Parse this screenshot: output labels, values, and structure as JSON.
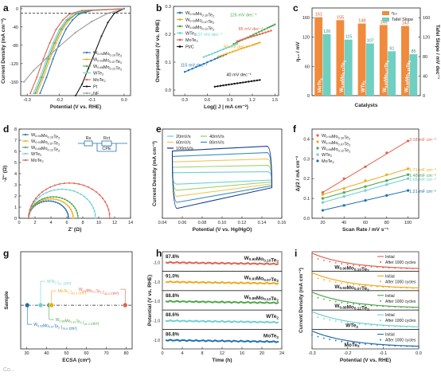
{
  "panels": {
    "a": {
      "label": "a"
    },
    "b": {
      "label": "b"
    },
    "c": {
      "label": "c"
    },
    "d": {
      "label": "d"
    },
    "e": {
      "label": "e"
    },
    "f": {
      "label": "f"
    },
    "g": {
      "label": "g"
    },
    "h": {
      "label": "h"
    },
    "i": {
      "label": "i"
    }
  },
  "colors": {
    "W0.90Mo0.10Te2": "#1f6fb2",
    "W0.93Mo0.07Te2": "#f0a81a",
    "W0.88Mo0.12Te2": "#4ea64a",
    "WTe2": "#6fcfd2",
    "MoTe2": "#e0604c",
    "Pt": "#111111",
    "NF": "#9a9a9a"
  },
  "watermark": "Co...",
  "chart_data": [
    {
      "panel": "a",
      "type": "line",
      "xlabel": "Potential (V vs. RHE)",
      "ylabel": "Current Density (mA cm⁻²)",
      "xlim": [
        -0.32,
        0.02
      ],
      "ylim": [
        -190,
        5
      ],
      "xticks": [
        -0.3,
        -0.2,
        -0.1,
        0.0
      ],
      "yticks": [
        0,
        -40,
        -80,
        -120,
        -160
      ],
      "reference_line_y": -10,
      "legend": [
        "W0.90Mo0.10Te2",
        "W0.93Mo0.07Te2",
        "W0.88Mo0.12Te2",
        "WTe2",
        "MoTe2",
        "Pt",
        "NF"
      ],
      "legend_position": "bottom-right",
      "series": [
        {
          "name": "W0.90Mo0.10Te2",
          "color": "#1f6fb2",
          "x": [
            0.0,
            -0.1,
            -0.14,
            -0.16,
            -0.18,
            -0.2,
            -0.22,
            -0.24,
            -0.26
          ],
          "y": [
            0,
            -4,
            -12,
            -25,
            -45,
            -75,
            -110,
            -150,
            -185
          ]
        },
        {
          "name": "W0.93Mo0.07Te2",
          "color": "#f0a81a",
          "x": [
            0.0,
            -0.11,
            -0.15,
            -0.17,
            -0.19,
            -0.21,
            -0.23,
            -0.25,
            -0.27
          ],
          "y": [
            0,
            -4,
            -12,
            -25,
            -45,
            -75,
            -110,
            -150,
            -185
          ]
        },
        {
          "name": "W0.88Mo0.12Te2",
          "color": "#4ea64a",
          "x": [
            0.0,
            -0.11,
            -0.15,
            -0.175,
            -0.195,
            -0.215,
            -0.235,
            -0.255,
            -0.275
          ],
          "y": [
            0,
            -4,
            -12,
            -25,
            -45,
            -75,
            -110,
            -150,
            -185
          ]
        },
        {
          "name": "WTe2",
          "color": "#6fcfd2",
          "x": [
            0.0,
            -0.12,
            -0.16,
            -0.18,
            -0.2,
            -0.22,
            -0.24,
            -0.26,
            -0.28
          ],
          "y": [
            0,
            -4,
            -12,
            -25,
            -45,
            -75,
            -110,
            -150,
            -185
          ]
        },
        {
          "name": "MoTe2",
          "color": "#e0604c",
          "x": [
            0.0,
            -0.13,
            -0.17,
            -0.19,
            -0.21,
            -0.23,
            -0.25,
            -0.27,
            -0.29
          ],
          "y": [
            0,
            -4,
            -12,
            -25,
            -45,
            -75,
            -110,
            -150,
            -185
          ]
        },
        {
          "name": "Pt",
          "color": "#111111",
          "x": [
            0.0,
            -0.03,
            -0.05,
            -0.07,
            -0.09,
            -0.11,
            -0.13,
            -0.15
          ],
          "y": [
            0,
            -10,
            -30,
            -60,
            -95,
            -130,
            -165,
            -190
          ]
        },
        {
          "name": "NF",
          "color": "#9a9a9a",
          "x": [
            0.0,
            -0.05,
            -0.1,
            -0.15,
            -0.2,
            -0.24,
            -0.28,
            -0.31
          ],
          "y": [
            0,
            -10,
            -28,
            -52,
            -82,
            -108,
            -135,
            -160
          ]
        }
      ]
    },
    {
      "panel": "b",
      "type": "line",
      "xlabel": "Log(| J | mA cm⁻²)",
      "ylabel": "Overpotential (V vs. RHE)",
      "xlim": [
        0.15,
        1.55
      ],
      "ylim": [
        -0.02,
        0.3
      ],
      "xticks": [
        0.3,
        0.6,
        0.9,
        1.2,
        1.5
      ],
      "yticks": [
        0.0,
        0.1,
        0.2,
        0.3
      ],
      "legend": [
        "W0.90Mo0.10Te2",
        "W0.93Mo0.07Te2",
        "W0.88Mo0.12Te2",
        "WTe2",
        "MoTe2",
        "Pt/C"
      ],
      "legend_position": "top-left",
      "annotations": [
        "126 mV dec⁻¹",
        "85 mV dec⁻¹",
        "107 mV dec⁻¹",
        "91 mV dec⁻¹",
        "115 mV dec⁻¹",
        "40 mV dec⁻¹"
      ],
      "series": [
        {
          "name": "W0.90Mo0.10Te2",
          "color": "#1f6fb2",
          "x": [
            0.3,
            0.5,
            0.7,
            0.85
          ],
          "y": [
            0.065,
            0.088,
            0.111,
            0.128
          ]
        },
        {
          "name": "W0.93Mo0.07Te2",
          "color": "#f0a81a",
          "x": [
            0.75,
            0.9,
            1.05,
            1.2,
            1.3
          ],
          "y": [
            0.12,
            0.134,
            0.148,
            0.161,
            0.17
          ]
        },
        {
          "name": "W0.88Mo0.12Te2",
          "color": "#4ea64a",
          "x": [
            0.95,
            1.1,
            1.25,
            1.4,
            1.5
          ],
          "y": [
            0.165,
            0.184,
            0.203,
            0.222,
            0.235
          ]
        },
        {
          "name": "WTe2",
          "color": "#6fcfd2",
          "x": [
            0.55,
            0.7,
            0.85,
            1.0
          ],
          "y": [
            0.118,
            0.134,
            0.15,
            0.166
          ]
        },
        {
          "name": "MoTe2",
          "color": "#e0604c",
          "x": [
            1.0,
            1.15,
            1.3,
            1.45
          ],
          "y": [
            0.175,
            0.188,
            0.2,
            0.213
          ]
        },
        {
          "name": "Pt/C",
          "color": "#111111",
          "x": [
            0.7,
            0.85,
            1.0,
            1.15,
            1.3
          ],
          "y": [
            0.012,
            0.018,
            0.024,
            0.03,
            0.036
          ]
        }
      ]
    },
    {
      "panel": "c",
      "type": "bar",
      "xlabel": "Catalysts",
      "ylabel": "η₁₀ / mV",
      "ylabel_right": "Tafel Slope / mV dec⁻¹",
      "categories": [
        "MoTe2",
        "W0.88Mo0.12Te2",
        "WTe2",
        "W0.93Mo0.07Te2",
        "W0.90Mo0.10Te2"
      ],
      "ylim": [
        0,
        180
      ],
      "ylim_right": [
        0,
        180
      ],
      "legend": [
        "η₁₀",
        "Tafel Slope"
      ],
      "legend_position": "top-right",
      "series": [
        {
          "name": "η₁₀",
          "color": "#f08a3c",
          "values": [
            161,
            155,
            148,
            145,
            143
          ]
        },
        {
          "name": "Tafel Slope",
          "color": "#6fcfc0",
          "values": [
            126,
            115,
            107,
            91,
            85
          ]
        }
      ]
    },
    {
      "panel": "d",
      "type": "scatter",
      "xlabel": "Z' (Ω)",
      "ylabel": "-Z'' (Ω)",
      "xlim": [
        0,
        14
      ],
      "ylim": [
        0,
        8
      ],
      "xticks": [
        0,
        2,
        4,
        6,
        8,
        10,
        12,
        14
      ],
      "yticks": [
        0,
        1,
        2,
        3,
        4,
        5,
        6,
        7,
        8
      ],
      "circuit_labels": [
        "Rs",
        "Rct",
        "CPE"
      ],
      "legend": [
        "W0.90Mo0.10Te2",
        "W0.93Mo0.07Te2",
        "W0.88Mo0.12Te2",
        "WTe2",
        "MoTe2"
      ],
      "legend_position": "top-left",
      "series": [
        {
          "name": "W0.90Mo0.10Te2",
          "color": "#1f6fb2",
          "start": 1.2,
          "end": 6.2
        },
        {
          "name": "W0.93Mo0.07Te2",
          "color": "#f0a81a",
          "start": 1.2,
          "end": 6.8
        },
        {
          "name": "W0.88Mo0.12Te2",
          "color": "#4ea64a",
          "start": 1.2,
          "end": 7.4
        },
        {
          "name": "WTe2",
          "color": "#6fcfd2",
          "start": 1.2,
          "end": 9.6
        },
        {
          "name": "MoTe2",
          "color": "#e0604c",
          "start": 1.2,
          "end": 11.4
        }
      ]
    },
    {
      "panel": "e",
      "type": "line",
      "xlabel": "Potential (V vs. Hg/HgO)",
      "ylabel": "Current Density (mA cm⁻²)",
      "xlim": [
        0.04,
        0.16
      ],
      "xticks": [
        0.04,
        0.06,
        0.08,
        0.1,
        0.12,
        0.14,
        0.16
      ],
      "legend": [
        "20mV/s",
        "40mV/s",
        "60mV/s",
        "80mV/s",
        "100mV/s"
      ],
      "legend_position": "top-left",
      "series": [
        {
          "name": "20mV/s",
          "color": "#6fcfd2",
          "amplitude": 0.2
        },
        {
          "name": "40mV/s",
          "color": "#9bd36a",
          "amplitude": 0.4
        },
        {
          "name": "60mV/s",
          "color": "#f0c75a",
          "amplitude": 0.6
        },
        {
          "name": "80mV/s",
          "color": "#3a8fc4",
          "amplitude": 0.8
        },
        {
          "name": "100mV/s",
          "color": "#1a3f8f",
          "amplitude": 1.0
        }
      ]
    },
    {
      "panel": "f",
      "type": "scatter",
      "xlabel": "Scan Rate / mV s⁻¹",
      "ylabel": "Δj/2 / mA cm⁻²",
      "xlim": [
        10,
        110
      ],
      "ylim": [
        0,
        0.45
      ],
      "xticks": [
        20,
        40,
        60,
        80,
        100
      ],
      "yticks": [
        0.0,
        0.1,
        0.2,
        0.3,
        0.4
      ],
      "legend": [
        "W0.90Mo0.10Te2",
        "W0.93Mo0.07Te2",
        "W0.88Mo0.12Te2",
        "WTe2",
        "MoTe2"
      ],
      "legend_position": "top-left",
      "annotations": [
        "3.18 mF cm⁻²",
        "1.71 mF cm⁻²",
        "1.48 mF cm⁻²",
        "1.65 mF cm⁻²",
        "1.21 mF cm⁻²"
      ],
      "x": [
        20,
        40,
        60,
        80,
        100
      ],
      "series": [
        {
          "name": "W0.90Mo0.10Te2",
          "color": "#e0604c",
          "values": [
            0.13,
            0.2,
            0.26,
            0.33,
            0.39
          ]
        },
        {
          "name": "W0.93Mo0.07Te2",
          "color": "#f0a81a",
          "values": [
            0.12,
            0.15,
            0.19,
            0.22,
            0.25
          ]
        },
        {
          "name": "W0.88Mo0.12Te2",
          "color": "#4ea64a",
          "values": [
            0.1,
            0.13,
            0.16,
            0.19,
            0.22
          ]
        },
        {
          "name": "WTe2",
          "color": "#6fcfd2",
          "values": [
            0.08,
            0.11,
            0.14,
            0.17,
            0.2
          ]
        },
        {
          "name": "MoTe2",
          "color": "#1f6fb2",
          "values": [
            0.04,
            0.065,
            0.09,
            0.115,
            0.14
          ]
        }
      ]
    },
    {
      "panel": "g",
      "type": "scatter",
      "xlabel": "ECSA (cm²)",
      "ylabel": "Sample",
      "xlim": [
        27,
        83
      ],
      "xticks": [
        30,
        40,
        50,
        60,
        70,
        80
      ],
      "annotations": [
        "WTe2 (37 cm²)",
        "W0.93Mo0.07Te2 (79.5 cm²)",
        "MoTe2 (42.5 cm²)",
        "W0.88Mo0.12Te2 (41.3 cm²)",
        "W0.9Mo0.1Te2 (30.3 cm²)"
      ],
      "series": [
        {
          "name": "W0.9Mo0.1Te2",
          "color": "#1f6fb2",
          "values": [
            30.3
          ]
        },
        {
          "name": "WTe2",
          "color": "#6fcfd2",
          "values": [
            37
          ]
        },
        {
          "name": "W0.88Mo0.12Te2",
          "color": "#4ea64a",
          "values": [
            41.3
          ]
        },
        {
          "name": "MoTe2",
          "color": "#f0a81a",
          "values": [
            42.5
          ]
        },
        {
          "name": "W0.93Mo0.07Te2",
          "color": "#e0604c",
          "values": [
            79.5
          ]
        }
      ]
    },
    {
      "panel": "h",
      "type": "line",
      "xlabel": "Time (h)",
      "ylabel": "Potential (V vs. RHE)",
      "xlim": [
        0,
        24
      ],
      "xticks": [
        0,
        4,
        8,
        12,
        16,
        20,
        24
      ],
      "ytick_label": "-1.0",
      "series": [
        {
          "name": "W0.90Mo0.10Te2",
          "color": "#e0604c",
          "retention": "87.8%"
        },
        {
          "name": "W0.93Mo0.07Te2",
          "color": "#f0a81a",
          "retention": "91.0%"
        },
        {
          "name": "W0.88Mo0.12Te2",
          "color": "#4ea64a",
          "retention": "88.8%"
        },
        {
          "name": "WTe2",
          "color": "#6fcfd2",
          "retention": "88.6%"
        },
        {
          "name": "MoTe2",
          "color": "#1f6fb2",
          "retention": "86.8%"
        }
      ]
    },
    {
      "panel": "i",
      "type": "line",
      "xlabel": "Potential (V vs. RHE)",
      "ylabel": "Current Density (mA cm⁻²)",
      "xlim": [
        -0.3,
        0.0
      ],
      "xticks": [
        -0.3,
        -0.2,
        -0.1,
        0.0
      ],
      "legend": [
        "Initial",
        "After 1000 cycles"
      ],
      "series": [
        {
          "name": "W0.90Mo0.10Te2",
          "color": "#e0604c"
        },
        {
          "name": "W0.93Mo0.07Te2",
          "color": "#f0a81a"
        },
        {
          "name": "W0.88Mo0.12Te2",
          "color": "#4ea64a"
        },
        {
          "name": "WTe2",
          "color": "#6fcfd2"
        },
        {
          "name": "MoTe2",
          "color": "#1f6fb2"
        }
      ]
    }
  ]
}
